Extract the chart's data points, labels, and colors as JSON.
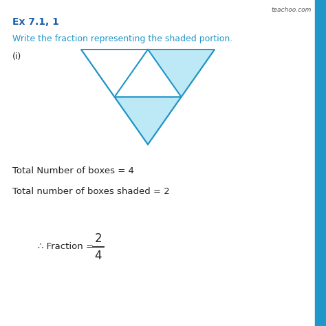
{
  "title": "Ex 7.1, 1",
  "subtitle": "Write the fraction representing the shaded portion.",
  "label_i": "(i)",
  "text1": "Total Number of boxes = 4",
  "text2": "Total number of boxes shaded = 2",
  "numerator": "2",
  "denominator": "4",
  "watermark": "teachoo.com",
  "bg_color": "#ffffff",
  "triangle_edge_color": "#2196C8",
  "shaded_color": "#BDE8F5",
  "unshaded_color": "#ffffff",
  "title_color": "#1a5fa8",
  "subtitle_color": "#2196C8",
  "body_color": "#222222",
  "right_bar_color": "#2196C8",
  "watermark_color": "#555555"
}
